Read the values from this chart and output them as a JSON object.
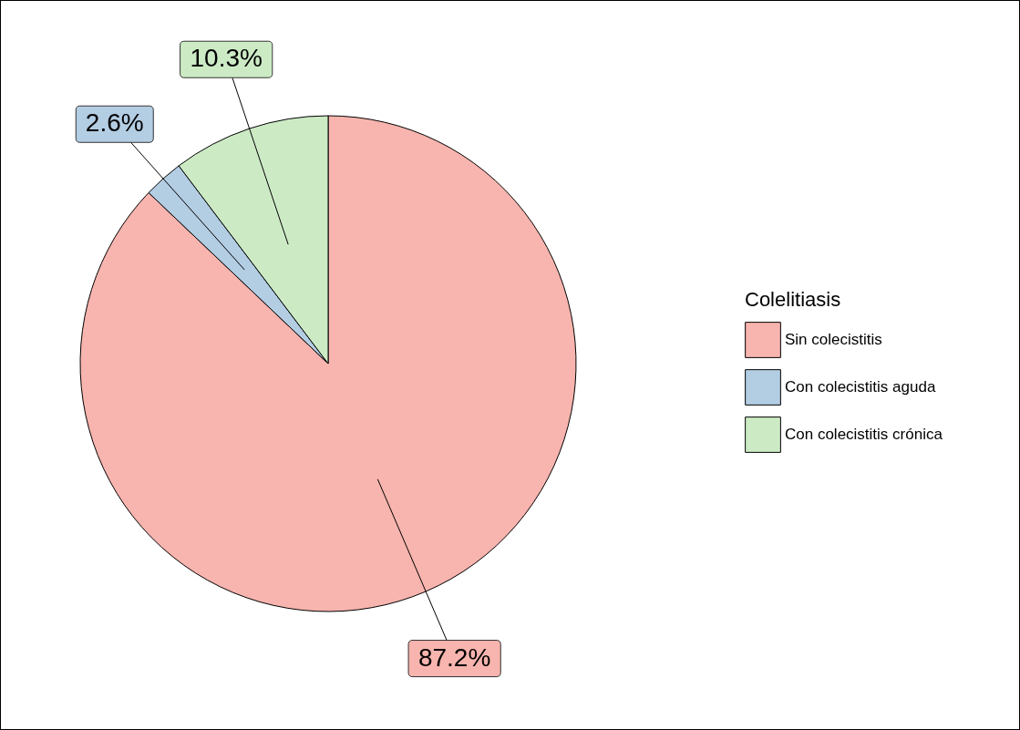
{
  "chart_data": {
    "type": "pie",
    "legend_title": "Colelitiasis",
    "legend": "right",
    "categories": [
      "Sin colecistitis",
      "Con colecistitis aguda",
      "Con colecistitis crónica"
    ],
    "values": [
      87.2,
      2.6,
      10.3
    ],
    "colors": [
      "#f8b4ae",
      "#b3cde3",
      "#ccebc5"
    ],
    "value_labels": [
      "87.2%",
      "2.6%",
      "10.3%"
    ]
  }
}
